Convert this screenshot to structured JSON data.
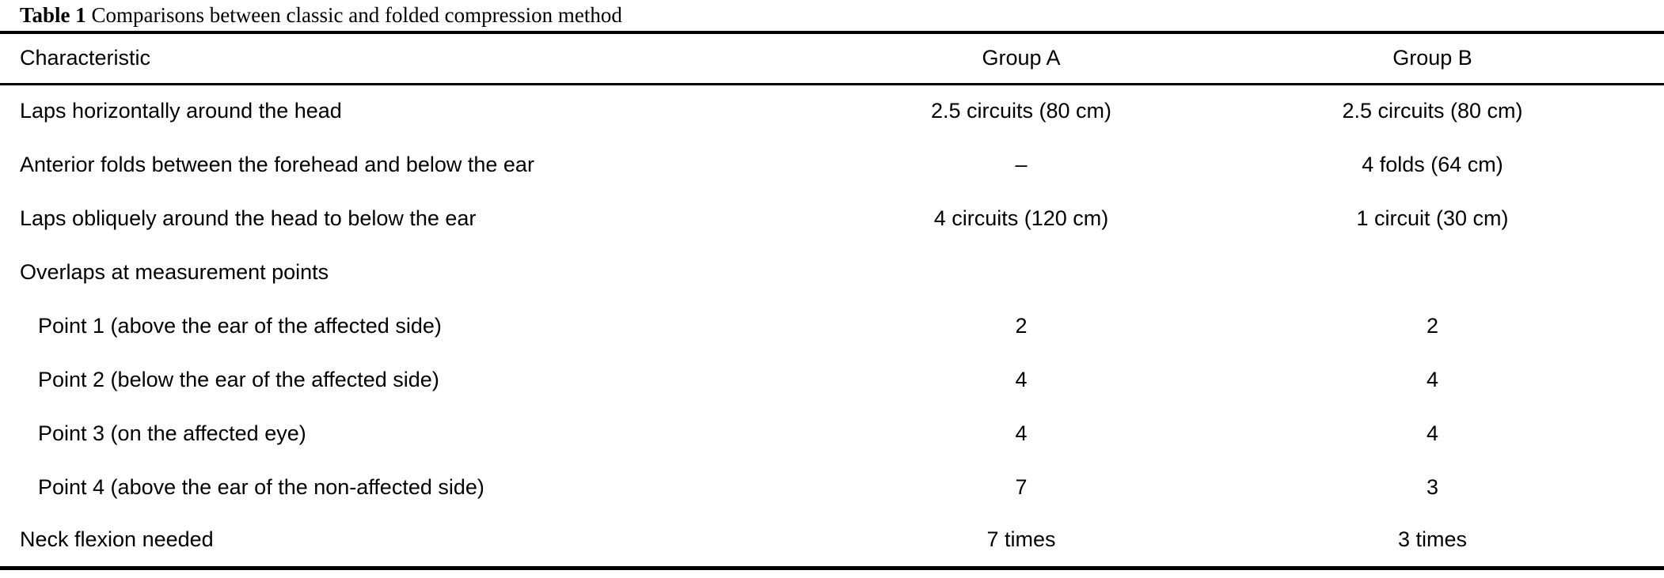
{
  "colors": {
    "background": "#ffffff",
    "text": "#000000",
    "rule": "#000000"
  },
  "table": {
    "title_label": "Table 1",
    "title_text": " Comparisons between classic and folded compression method",
    "columns": [
      "Characteristic",
      "Group A",
      "Group B"
    ],
    "rows": [
      {
        "label": "Laps horizontally around the head",
        "indent": false,
        "group_a": "2.5 circuits (80 cm)",
        "group_b": "2.5 circuits (80 cm)"
      },
      {
        "label": "Anterior folds between the forehead and below the ear",
        "indent": false,
        "group_a": "–",
        "group_b": "4 folds (64 cm)"
      },
      {
        "label": "Laps obliquely around the head to below the ear",
        "indent": false,
        "group_a": "4 circuits (120 cm)",
        "group_b": "1 circuit (30 cm)"
      },
      {
        "label": "Overlaps at measurement points",
        "indent": false,
        "group_a": "",
        "group_b": ""
      },
      {
        "label": "Point 1 (above the ear of the affected side)",
        "indent": true,
        "group_a": "2",
        "group_b": "2"
      },
      {
        "label": "Point 2 (below the ear of the affected side)",
        "indent": true,
        "group_a": "4",
        "group_b": "4"
      },
      {
        "label": "Point 3 (on the affected eye)",
        "indent": true,
        "group_a": "4",
        "group_b": "4"
      },
      {
        "label": "Point 4 (above the ear of the non-affected side)",
        "indent": true,
        "group_a": "7",
        "group_b": "3"
      },
      {
        "label": "Neck flexion needed",
        "indent": false,
        "group_a": "7 times",
        "group_b": "3 times"
      }
    ]
  }
}
